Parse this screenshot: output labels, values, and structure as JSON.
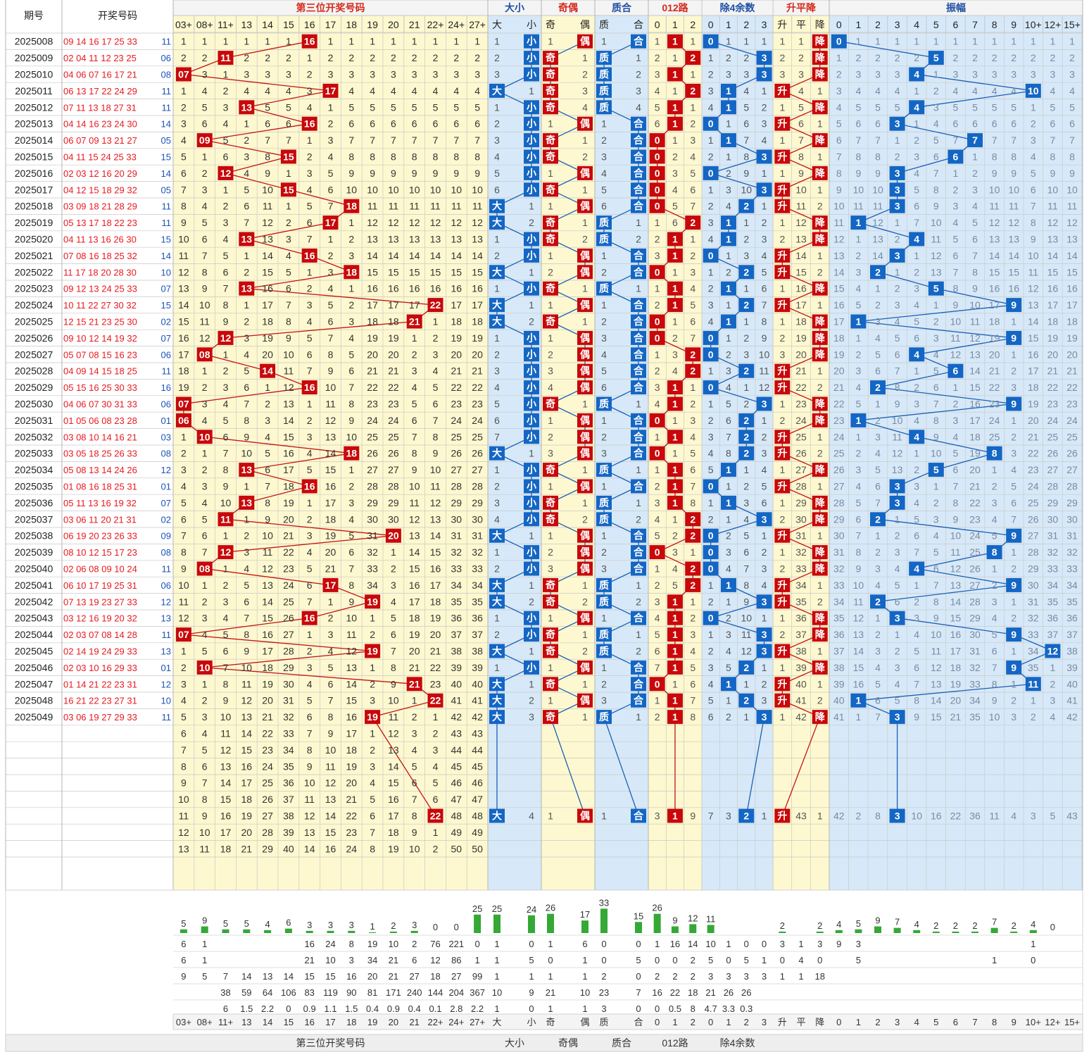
{
  "header": {
    "col_issue": "期号",
    "col_numbers": "开奖号码",
    "groups": [
      "第三位开奖号码",
      "大小",
      "奇偶",
      "质合",
      "012路",
      "除4余数",
      "升平降",
      "振幅"
    ],
    "third_cols": [
      "03+",
      "08+",
      "11+",
      "13",
      "14",
      "15",
      "16",
      "17",
      "18",
      "19",
      "20",
      "21",
      "22+",
      "24+",
      "27+"
    ],
    "dx_cols": [
      "大",
      "小"
    ],
    "jo_cols": [
      "奇",
      "偶"
    ],
    "zh_cols": [
      "质",
      "合"
    ],
    "r3_cols": [
      "0",
      "1",
      "2"
    ],
    "r4_cols": [
      "0",
      "1",
      "2",
      "3"
    ],
    "spj_cols": [
      "升",
      "平",
      "降"
    ],
    "amp_cols": [
      "0",
      "1",
      "2",
      "3",
      "4",
      "5",
      "6",
      "7",
      "8",
      "9",
      "10+",
      "12+",
      "15+"
    ]
  },
  "footer_groups": [
    "第三位开奖号码",
    "大小",
    "奇偶",
    "质合",
    "012路",
    "除4余数"
  ],
  "draws": [
    {
      "issue": "2025008",
      "nums": "09 14 16 17 25 33",
      "blue": "11",
      "third": 16
    },
    {
      "issue": "2025009",
      "nums": "02 04 11 12 23 25",
      "blue": "06",
      "third": 11
    },
    {
      "issue": "2025010",
      "nums": "04 06 07 16 17 21",
      "blue": "08",
      "third": 7
    },
    {
      "issue": "2025011",
      "nums": "06 13 17 22 24 29",
      "blue": "11",
      "third": 17
    },
    {
      "issue": "2025012",
      "nums": "07 11 13 18 27 31",
      "blue": "11",
      "third": 13
    },
    {
      "issue": "2025013",
      "nums": "04 14 16 23 24 30",
      "blue": "14",
      "third": 16
    },
    {
      "issue": "2025014",
      "nums": "06 07 09 13 21 27",
      "blue": "05",
      "third": 9
    },
    {
      "issue": "2025015",
      "nums": "04 11 15 24 25 33",
      "blue": "15",
      "third": 15
    },
    {
      "issue": "2025016",
      "nums": "02 03 12 16 20 29",
      "blue": "14",
      "third": 12
    },
    {
      "issue": "2025017",
      "nums": "04 12 15 18 29 32",
      "blue": "05",
      "third": 15
    },
    {
      "issue": "2025018",
      "nums": "03 09 18 21 28 29",
      "blue": "11",
      "third": 18
    },
    {
      "issue": "2025019",
      "nums": "05 13 17 18 22 23",
      "blue": "11",
      "third": 17
    },
    {
      "issue": "2025020",
      "nums": "04 11 13 16 26 30",
      "blue": "15",
      "third": 13
    },
    {
      "issue": "2025021",
      "nums": "07 08 16 18 25 32",
      "blue": "14",
      "third": 16
    },
    {
      "issue": "2025022",
      "nums": "11 17 18 20 28 30",
      "blue": "10",
      "third": 18
    },
    {
      "issue": "2025023",
      "nums": "09 12 13 24 25 33",
      "blue": "07",
      "third": 13
    },
    {
      "issue": "2025024",
      "nums": "10 11 22 27 30 32",
      "blue": "15",
      "third": 22
    },
    {
      "issue": "2025025",
      "nums": "12 15 21 23 25 30",
      "blue": "02",
      "third": 21
    },
    {
      "issue": "2025026",
      "nums": "09 10 12 14 19 32",
      "blue": "07",
      "third": 12
    },
    {
      "issue": "2025027",
      "nums": "05 07 08 15 16 23",
      "blue": "06",
      "third": 8
    },
    {
      "issue": "2025028",
      "nums": "04 09 14 15 18 25",
      "blue": "11",
      "third": 14
    },
    {
      "issue": "2025029",
      "nums": "05 15 16 25 30 33",
      "blue": "16",
      "third": 16
    },
    {
      "issue": "2025030",
      "nums": "04 06 07 30 31 33",
      "blue": "06",
      "third": 7
    },
    {
      "issue": "2025031",
      "nums": "01 05 06 08 23 28",
      "blue": "01",
      "third": 6
    },
    {
      "issue": "2025032",
      "nums": "03 08 10 14 16 21",
      "blue": "03",
      "third": 10
    },
    {
      "issue": "2025033",
      "nums": "03 05 18 25 26 33",
      "blue": "08",
      "third": 18
    },
    {
      "issue": "2025034",
      "nums": "05 08 13 14 24 26",
      "blue": "12",
      "third": 13
    },
    {
      "issue": "2025035",
      "nums": "01 08 16 18 25 31",
      "blue": "01",
      "third": 16
    },
    {
      "issue": "2025036",
      "nums": "05 11 13 16 19 32",
      "blue": "07",
      "third": 13
    },
    {
      "issue": "2025037",
      "nums": "03 06 11 20 21 31",
      "blue": "02",
      "third": 11
    },
    {
      "issue": "2025038",
      "nums": "06 19 20 23 26 33",
      "blue": "09",
      "third": 20
    },
    {
      "issue": "2025039",
      "nums": "08 10 12 15 17 23",
      "blue": "08",
      "third": 12
    },
    {
      "issue": "2025040",
      "nums": "02 06 08 09 10 24",
      "blue": "11",
      "third": 8
    },
    {
      "issue": "2025041",
      "nums": "06 10 17 19 25 31",
      "blue": "06",
      "third": 17
    },
    {
      "issue": "2025042",
      "nums": "07 13 19 23 27 33",
      "blue": "12",
      "third": 19
    },
    {
      "issue": "2025043",
      "nums": "03 12 16 19 20 32",
      "blue": "13",
      "third": 16
    },
    {
      "issue": "2025044",
      "nums": "02 03 07 08 14 28",
      "blue": "11",
      "third": 7
    },
    {
      "issue": "2025045",
      "nums": "02 14 19 24 29 33",
      "blue": "13",
      "third": 19
    },
    {
      "issue": "2025046",
      "nums": "02 03 10 16 29 33",
      "blue": "01",
      "third": 10
    },
    {
      "issue": "2025047",
      "nums": "01 14 21 22 23 31",
      "blue": "12",
      "third": 21
    },
    {
      "issue": "2025048",
      "nums": "16 21 22 23 27 31",
      "blue": "10",
      "third": 22
    },
    {
      "issue": "2025049",
      "nums": "03 06 19 27 29 33",
      "blue": "11",
      "third": 19
    },
    {
      "issue": "",
      "nums": "",
      "blue": "",
      "third": null
    },
    {
      "issue": "",
      "nums": "",
      "blue": "",
      "third": null
    },
    {
      "issue": "",
      "nums": "",
      "blue": "",
      "third": null
    },
    {
      "issue": "",
      "nums": "",
      "blue": "",
      "third": null
    },
    {
      "issue": "",
      "nums": "",
      "blue": "",
      "third": null
    },
    {
      "issue": "",
      "nums": "",
      "blue": "",
      "third": 22
    },
    {
      "issue": "",
      "nums": "",
      "blue": "",
      "third": null
    },
    {
      "issue": "",
      "nums": "",
      "blue": "",
      "third": null
    }
  ],
  "stats": {
    "bars": [
      5,
      9,
      5,
      5,
      4,
      6,
      3,
      3,
      3,
      1,
      2,
      3,
      0,
      0,
      25,
      25,
      24,
      26,
      17,
      33,
      15,
      26,
      9,
      12,
      11,
      null,
      null,
      null,
      2,
      null,
      2,
      4,
      5,
      9,
      7,
      4,
      2,
      2,
      2,
      7,
      2,
      4,
      0
    ],
    "row1": [
      "6",
      "1",
      "",
      "",
      "",
      "",
      "16",
      "24",
      "8",
      "19",
      "10",
      "2",
      "76",
      "221",
      "0",
      "1",
      "0",
      "1",
      "6",
      "0",
      "0",
      "1",
      "16",
      "14",
      "10",
      "1",
      "0",
      "0",
      "3",
      "1",
      "3",
      "9",
      "3",
      "",
      "",
      "",
      "",
      "",
      "",
      "",
      "",
      "1",
      ""
    ],
    "row2": [
      "6",
      "1",
      "",
      "",
      "",
      "",
      "21",
      "10",
      "3",
      "34",
      "21",
      "6",
      "12",
      "86",
      "1",
      "1",
      "5",
      "0",
      "1",
      "0",
      "5",
      "0",
      "0",
      "2",
      "5",
      "0",
      "5",
      "1",
      "0",
      "4",
      "0",
      "",
      "5",
      "",
      "",
      "",
      "",
      "",
      "",
      "1",
      "",
      "0",
      ""
    ],
    "row3": [
      "9",
      "5",
      "7",
      "14",
      "13",
      "14",
      "15",
      "15",
      "16",
      "20",
      "21",
      "27",
      "18",
      "27",
      "99",
      "1",
      "1",
      "1",
      "1",
      "2",
      "0",
      "2",
      "2",
      "2",
      "3",
      "3",
      "3",
      "3",
      "1",
      "1",
      "18",
      "",
      "",
      "",
      "",
      "",
      "",
      "",
      "",
      "",
      "",
      "",
      ""
    ],
    "row4": [
      "",
      "",
      "38",
      "59",
      "64",
      "106",
      "83",
      "119",
      "90",
      "81",
      "171",
      "240",
      "144",
      "204",
      "367",
      "10",
      "9",
      "21",
      "10",
      "23",
      "7",
      "16",
      "22",
      "18",
      "21",
      "26",
      "26",
      "",
      "",
      "",
      "",
      "",
      "",
      "",
      "",
      "",
      "",
      "",
      "",
      "",
      "",
      "",
      ""
    ],
    "row5": [
      "",
      "",
      "6",
      "1.5",
      "2.2",
      "0",
      "0.9",
      "1.1",
      "1.5",
      "0.4",
      "0.9",
      "0.4",
      "0.1",
      "2.8",
      "2.2",
      "1",
      "0",
      "1",
      "1",
      "3",
      "0",
      "0",
      "0.5",
      "8",
      "4.7",
      "3.3",
      "0.3",
      "",
      "",
      "",
      "",
      "",
      "",
      "",
      "",
      "",
      "",
      "",
      "",
      "",
      "",
      "",
      ""
    ]
  },
  "colors": {
    "hit_red": "#c8080a",
    "hit_blue": "#1466c4",
    "issue_text": "#222222",
    "nums_red": "#e8191e",
    "nums_blue": "#1b53b8",
    "header_red": "#d42a1c",
    "header_blue": "#1f4fa3",
    "omit_text": "#333333",
    "bg_yellow": "#fdf8cf",
    "bg_blue": "#d7e9f8",
    "bar_green": "#35a835",
    "line_red": "#c41414",
    "line_blue": "#1a5fb8"
  }
}
